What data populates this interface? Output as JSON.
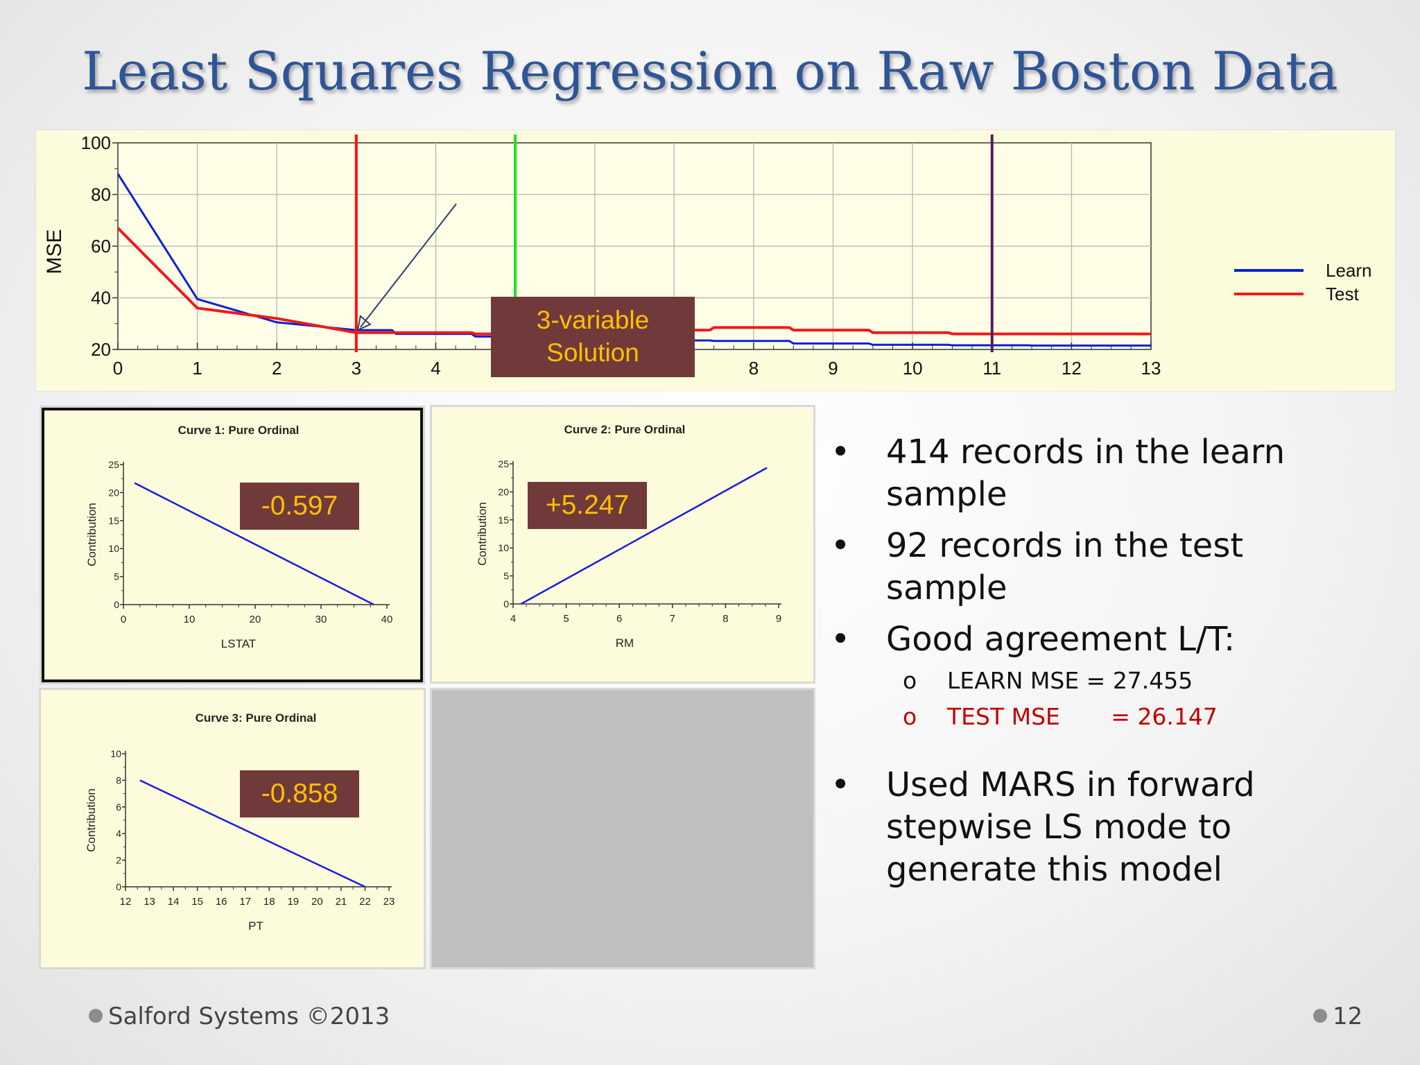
{
  "title": "Least Squares Regression on Raw Boston Data",
  "colors": {
    "learn": "#0a20d8",
    "test": "#ee1a1a",
    "badge_bg": "#713a3a",
    "badge_fg": "#ffc000",
    "accent_title": "#2f5597",
    "test_mse_text": "#c00000"
  },
  "chart_data": [
    {
      "type": "line",
      "ylabel": "MSE",
      "xlim": [
        0,
        13
      ],
      "ylim": [
        20,
        100
      ],
      "xticks": [
        "0",
        "1",
        "2",
        "3",
        "4",
        "5",
        "6",
        "7",
        "8",
        "9",
        "10",
        "11",
        "12",
        "13"
      ],
      "yticks": [
        "20",
        "40",
        "60",
        "80",
        "100"
      ],
      "grid": true,
      "legend": "right",
      "series": [
        {
          "name": "Learn",
          "x": [
            0,
            1,
            2,
            3,
            4,
            5,
            6,
            7,
            8,
            9,
            10,
            11,
            12,
            13
          ],
          "y": [
            88,
            39.5,
            30.5,
            27.5,
            26,
            25,
            24,
            23.5,
            23.3,
            22.3,
            21.8,
            21.6,
            21.5,
            21.5
          ]
        },
        {
          "name": "Test",
          "x": [
            0,
            1,
            2,
            3,
            4,
            5,
            6,
            7,
            8,
            9,
            10,
            11,
            12,
            13
          ],
          "y": [
            67,
            36,
            32,
            26.5,
            26.5,
            26,
            27.5,
            27.5,
            28.5,
            27.5,
            26.5,
            26,
            26,
            26
          ]
        }
      ],
      "markers": [
        {
          "x": 3,
          "color": "#ff1010"
        },
        {
          "x": 5,
          "color": "#22dd22"
        },
        {
          "x": 11,
          "color": "#5a1a5a"
        }
      ],
      "annotation": {
        "line1": "3-variable",
        "line2": "Solution",
        "points_to": {
          "x": 3,
          "y": 27
        }
      }
    },
    {
      "type": "line",
      "title": "Curve 1: Pure Ordinal",
      "xlabel": "LSTAT",
      "ylabel": "Contribution",
      "xlim": [
        0,
        40
      ],
      "ylim": [
        0,
        25
      ],
      "xticks": [
        "0",
        "10",
        "20",
        "30",
        "40"
      ],
      "yticks": [
        "0",
        "5",
        "10",
        "15",
        "20",
        "25"
      ],
      "x": [
        1.7,
        38
      ],
      "y": [
        21.7,
        0
      ],
      "coefficient": "-0.597"
    },
    {
      "type": "line",
      "title": "Curve 2: Pure Ordinal",
      "xlabel": "RM",
      "ylabel": "Contribution",
      "xlim": [
        4,
        9
      ],
      "ylim": [
        0,
        25
      ],
      "xticks": [
        "4",
        "5",
        "6",
        "7",
        "8",
        "9"
      ],
      "yticks": [
        "0",
        "5",
        "10",
        "15",
        "20",
        "25"
      ],
      "x": [
        4.15,
        8.78
      ],
      "y": [
        0,
        24.3
      ],
      "coefficient": "+5.247"
    },
    {
      "type": "line",
      "title": "Curve 3: Pure Ordinal",
      "xlabel": "PT",
      "ylabel": "Contribution",
      "xlim": [
        12,
        23
      ],
      "ylim": [
        0,
        10
      ],
      "xticks": [
        "12",
        "13",
        "14",
        "15",
        "16",
        "17",
        "18",
        "19",
        "20",
        "21",
        "22",
        "23"
      ],
      "yticks": [
        "0",
        "2",
        "4",
        "6",
        "8",
        "10"
      ],
      "x": [
        12.6,
        22
      ],
      "y": [
        8,
        0
      ],
      "coefficient": "-0.858"
    }
  ],
  "bullets": {
    "b1": "414 records in the learn sample",
    "b2": "92 records in the test sample",
    "b3": "Good agreement L/T:",
    "sub1": "LEARN MSE = 27.455",
    "sub2": "TEST MSE       = 26.147",
    "b4": "Used MARS in forward stepwise LS mode to generate this model",
    "bullet_char": "•",
    "sub_char": "o"
  },
  "footer": {
    "left": "Salford Systems  ©2013",
    "right": "12"
  }
}
